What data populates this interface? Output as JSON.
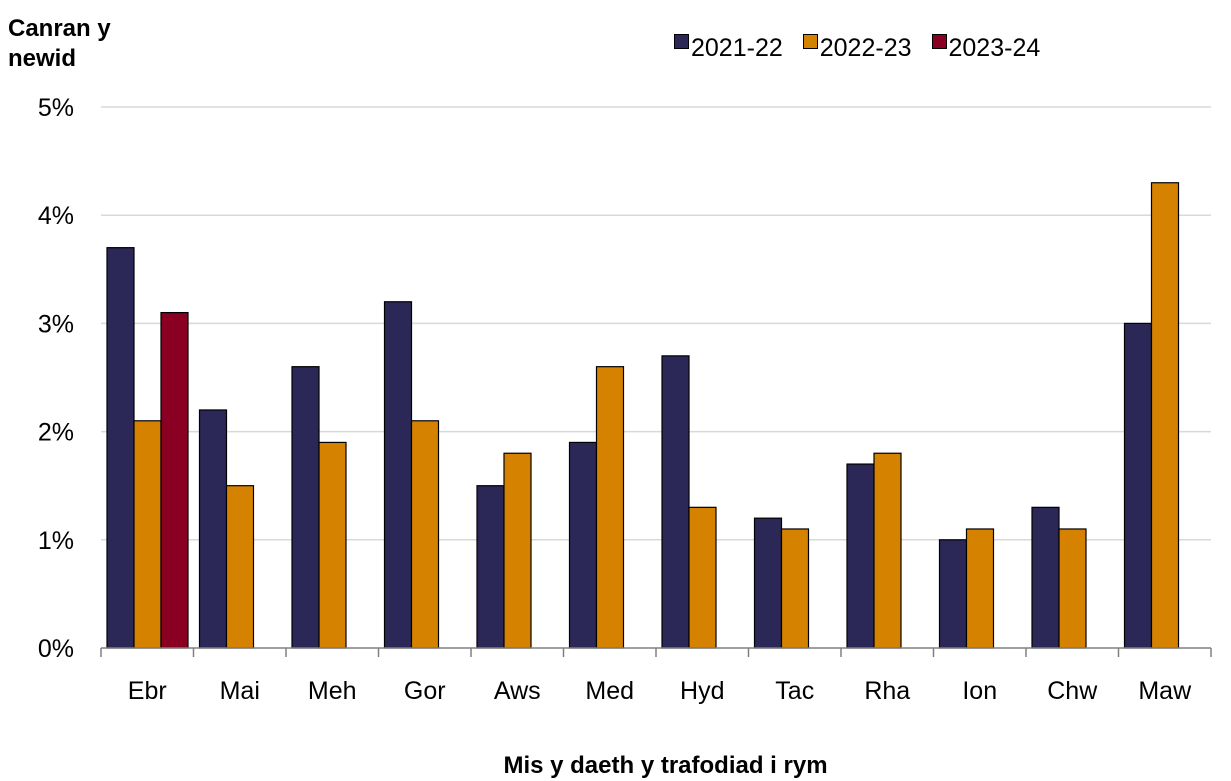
{
  "chart_data": {
    "type": "bar",
    "ylabel": "Canran y newid",
    "xlabel": "Mis y daeth y trafodiad i rym",
    "ylim": [
      0,
      5
    ],
    "yticks": [
      "0%",
      "1%",
      "2%",
      "3%",
      "4%",
      "5%"
    ],
    "grid": true,
    "legend_position": "top-right",
    "categories": [
      "Ebr",
      "Mai",
      "Meh",
      "Gor",
      "Aws",
      "Med",
      "Hyd",
      "Tac",
      "Rha",
      "Ion",
      "Chw",
      "Maw"
    ],
    "series": [
      {
        "name": "2021-22",
        "color": "#2b2757",
        "values": [
          3.7,
          2.2,
          2.6,
          3.2,
          1.5,
          1.9,
          2.7,
          1.2,
          1.7,
          1.0,
          1.3,
          3.0
        ]
      },
      {
        "name": "2022-23",
        "color": "#d58200",
        "values": [
          2.1,
          1.5,
          1.9,
          2.1,
          1.8,
          2.6,
          1.3,
          1.1,
          1.8,
          1.1,
          1.1,
          4.3
        ]
      },
      {
        "name": "2023-24",
        "color": "#8a0022",
        "values": [
          3.1,
          null,
          null,
          null,
          null,
          null,
          null,
          null,
          null,
          null,
          null,
          null
        ]
      }
    ]
  }
}
